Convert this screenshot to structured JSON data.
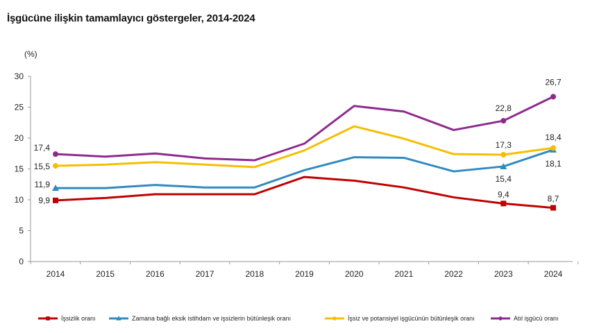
{
  "chart_data": {
    "type": "line",
    "title": "İşgücüne ilişkin tamamlayıcı göstergeler, 2014-2024",
    "ylabel": "(%)",
    "xlabel": "",
    "ylim": [
      0,
      30
    ],
    "y_ticks": [
      "0",
      "5",
      "10",
      "15",
      "20",
      "25",
      "30"
    ],
    "categories": [
      "2014",
      "2015",
      "2016",
      "2017",
      "2018",
      "2019",
      "2020",
      "2021",
      "2022",
      "2023",
      "2024"
    ],
    "grid": false,
    "legend_position": "bottom",
    "series": [
      {
        "name": "İşsizlik oranı",
        "color": "#C00000",
        "marker": "square",
        "values": [
          9.9,
          10.3,
          10.9,
          10.9,
          10.9,
          13.7,
          13.1,
          12.0,
          10.4,
          9.4,
          8.7
        ],
        "labels": [
          {
            "index": 0,
            "text": "9,9"
          },
          {
            "index": 9,
            "text": "9,4"
          },
          {
            "index": 10,
            "text": "8,7"
          }
        ]
      },
      {
        "name": "Zamana bağlı eksik istihdam ve işsizlerin bütünleşik oranı",
        "color": "#2E8BC0",
        "marker": "triangle",
        "values": [
          11.9,
          11.9,
          12.4,
          12.0,
          12.0,
          14.8,
          16.9,
          16.8,
          14.6,
          15.4,
          18.1
        ],
        "labels": [
          {
            "index": 0,
            "text": "11,9"
          },
          {
            "index": 9,
            "text": "15,4"
          },
          {
            "index": 10,
            "text": "18,1"
          }
        ]
      },
      {
        "name": "İşsiz ve potansiyel işgücünün bütünleşik oranı",
        "color": "#F6BE00",
        "marker": "circle",
        "values": [
          15.5,
          15.7,
          16.1,
          15.7,
          15.3,
          18.0,
          21.9,
          19.9,
          17.4,
          17.3,
          18.4
        ],
        "labels": [
          {
            "index": 0,
            "text": "15,5"
          },
          {
            "index": 9,
            "text": "17,3"
          },
          {
            "index": 10,
            "text": "18,4"
          }
        ]
      },
      {
        "name": "Atıl işgücü oranı",
        "color": "#8E2A8E",
        "marker": "circle",
        "values": [
          17.4,
          17.0,
          17.5,
          16.7,
          16.4,
          19.1,
          25.2,
          24.3,
          21.3,
          22.8,
          26.7
        ],
        "labels": [
          {
            "index": 0,
            "text": "17,4"
          },
          {
            "index": 9,
            "text": "22,8"
          },
          {
            "index": 10,
            "text": "26,7"
          }
        ]
      }
    ]
  }
}
